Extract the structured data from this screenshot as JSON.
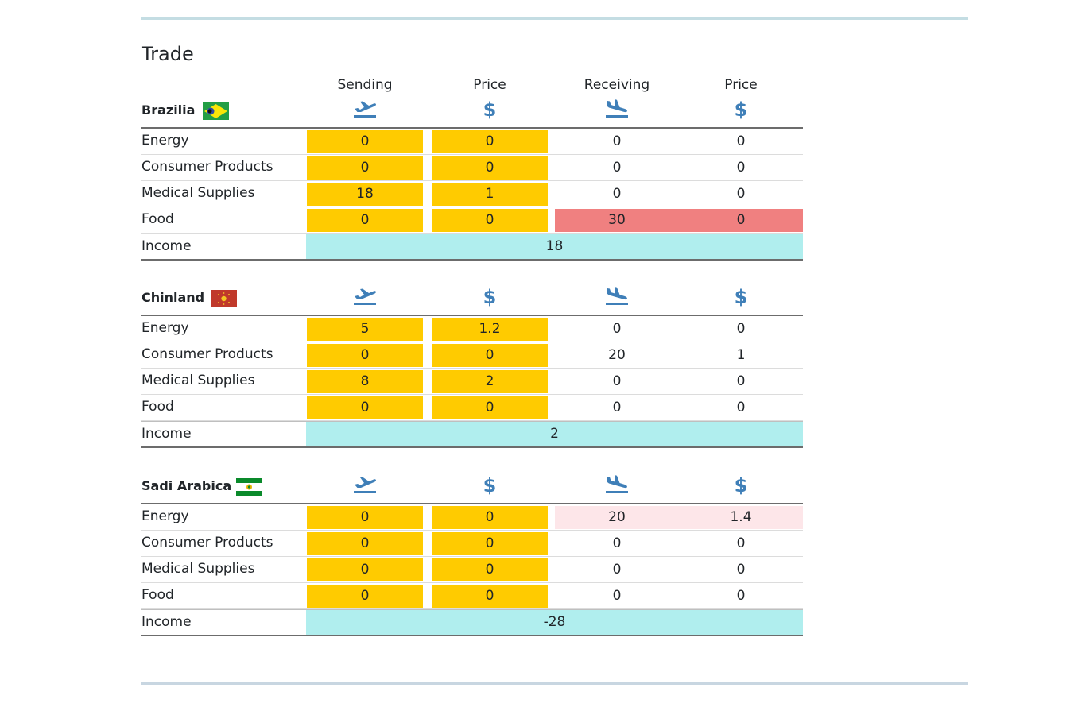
{
  "page": {
    "title": "Trade",
    "column_headers": [
      "Sending",
      "Price",
      "Receiving",
      "Price"
    ],
    "icons": [
      "plane-departure-icon",
      "dollar-icon",
      "plane-arrival-icon",
      "dollar-icon"
    ],
    "dollar_glyph": "$"
  },
  "colors": {
    "accent_icon": "#3f7fb8",
    "editable_cell": "#ffcb00",
    "income": "#b0eeee",
    "receiving_highlight": "#f08080",
    "receiving_light": "#fde6e9"
  },
  "countries": [
    {
      "name": "Brazilia",
      "flag": "brazil-flag-icon",
      "rows": [
        {
          "label": "Energy",
          "sending": "0",
          "send_price": "0",
          "receiving": "0",
          "recv_price": "0"
        },
        {
          "label": "Consumer Products",
          "sending": "0",
          "send_price": "0",
          "receiving": "0",
          "recv_price": "0"
        },
        {
          "label": "Medical Supplies",
          "sending": "18",
          "send_price": "1",
          "receiving": "0",
          "recv_price": "0"
        },
        {
          "label": "Food",
          "sending": "0",
          "send_price": "0",
          "receiving": "30",
          "recv_price": "0"
        }
      ],
      "income_label": "Income",
      "income": "18"
    },
    {
      "name": "Chinland",
      "flag": "china-flag-icon",
      "rows": [
        {
          "label": "Energy",
          "sending": "5",
          "send_price": "1.2",
          "receiving": "0",
          "recv_price": "0"
        },
        {
          "label": "Consumer Products",
          "sending": "0",
          "send_price": "0",
          "receiving": "20",
          "recv_price": "1"
        },
        {
          "label": "Medical Supplies",
          "sending": "8",
          "send_price": "2",
          "receiving": "0",
          "recv_price": "0"
        },
        {
          "label": "Food",
          "sending": "0",
          "send_price": "0",
          "receiving": "0",
          "recv_price": "0"
        }
      ],
      "income_label": "Income",
      "income": "2"
    },
    {
      "name": "Sadi Arabica",
      "flag": "green-white-flag-icon",
      "rows": [
        {
          "label": "Energy",
          "sending": "0",
          "send_price": "0",
          "receiving": "20",
          "recv_price": "1.4"
        },
        {
          "label": "Consumer Products",
          "sending": "0",
          "send_price": "0",
          "receiving": "0",
          "recv_price": "0"
        },
        {
          "label": "Medical Supplies",
          "sending": "0",
          "send_price": "0",
          "receiving": "0",
          "recv_price": "0"
        },
        {
          "label": "Food",
          "sending": "0",
          "send_price": "0",
          "receiving": "0",
          "recv_price": "0"
        }
      ],
      "income_label": "Income",
      "income": "-28"
    }
  ]
}
